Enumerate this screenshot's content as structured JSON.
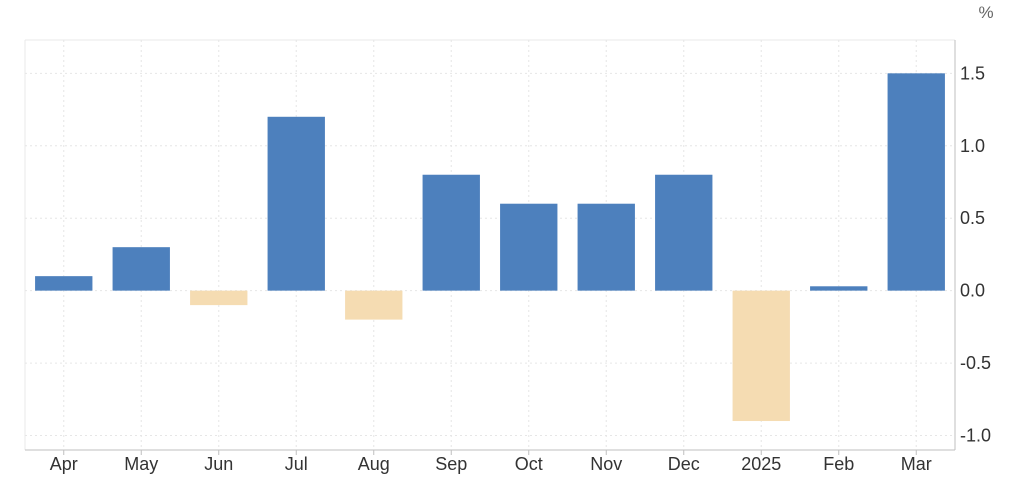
{
  "chart_data": {
    "type": "bar",
    "unit": "%",
    "categories": [
      "Apr",
      "May",
      "Jun",
      "Jul",
      "Aug",
      "Sep",
      "Oct",
      "Nov",
      "Dec",
      "2025",
      "Feb",
      "Mar"
    ],
    "values": [
      0.1,
      0.3,
      -0.1,
      1.2,
      -0.2,
      0.8,
      0.6,
      0.6,
      0.8,
      -0.9,
      0.03,
      1.5
    ],
    "yticks": [
      1.5,
      1.0,
      0.5,
      0.0,
      -0.5,
      -1.0
    ],
    "ytick_labels": [
      "1.5",
      "1.0",
      "0.5",
      "0.0",
      "-0.5",
      "-1.0"
    ],
    "ylim": [
      -1.1,
      1.73
    ],
    "title": "",
    "xlabel": "",
    "ylabel": "",
    "grid": true,
    "y_axis_position": "right",
    "colors": {
      "positive": "#4d80bd",
      "negative": "#f5dcb2",
      "grid": "#e6e6e6",
      "text": "#333333",
      "unit": "#666666"
    }
  }
}
